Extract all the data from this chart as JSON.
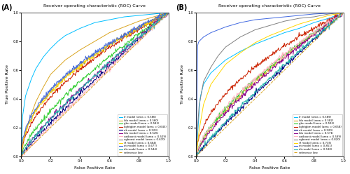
{
  "title": "Receiver operating characteristic (ROC) Curve",
  "xlabel": "False Positive Rate",
  "ylabel": "True Positive Rate",
  "panel_A_label": "(A)",
  "panel_B_label": "(B)",
  "legend_A": [
    "lr model (area = 0.586)",
    "lda model (area = 0.560)",
    "gbc model (area = 0.583)",
    "lightgbm model (area = 0.645)",
    "nb model (area = 0.523)",
    "lda model (area = 0.545)",
    "catboost model (area = 0.509)",
    "xgboost model (area = 0.670)",
    "rf model (area = 0.664)",
    "et model (area = 0.677)",
    "dt model (area = 0.544)",
    "reference line"
  ],
  "legend_B": [
    "lr model (area = 0.589)",
    "lda model (area = 0.582)",
    "gbc model (area = 0.593)",
    "lightgbm model (area = 0.658)",
    "nb model (area = 0.520)",
    "lda model (area = 0.571)",
    "catboost model (area = 0.599)",
    "xgboost model (area = 0.820)",
    "rf model (area = 0.735)",
    "et model (area = 0.851)",
    "dt model (area = 0.530)",
    "reference line"
  ],
  "colors": {
    "lr": "#00BFFF",
    "lda": "#DAA520",
    "gbc": "#32CD32",
    "lightgbm": "#CC2200",
    "nb": "#000080",
    "lda2": "#8B008B",
    "catboost": "#FFB6C1",
    "xgboost": "#808080",
    "rf": "#FFD700",
    "et": "#4169E1",
    "dt": "#20B2AA",
    "ref": "#DAA520"
  },
  "aucs_A": [
    0.586,
    0.56,
    0.583,
    0.645,
    0.523,
    0.545,
    0.509,
    0.67,
    0.664,
    0.677,
    0.544
  ],
  "aucs_B": [
    0.589,
    0.582,
    0.593,
    0.658,
    0.52,
    0.571,
    0.599,
    0.82,
    0.735,
    0.851,
    0.53
  ],
  "background": "#ffffff"
}
